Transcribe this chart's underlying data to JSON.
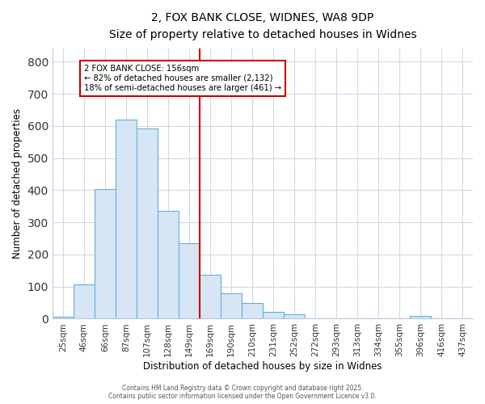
{
  "title_line1": "2, FOX BANK CLOSE, WIDNES, WA8 9DP",
  "title_line2": "Size of property relative to detached houses in Widnes",
  "xlabel": "Distribution of detached houses by size in Widnes",
  "ylabel": "Number of detached properties",
  "bin_labels": [
    "25sqm",
    "46sqm",
    "66sqm",
    "87sqm",
    "107sqm",
    "128sqm",
    "149sqm",
    "169sqm",
    "190sqm",
    "210sqm",
    "231sqm",
    "252sqm",
    "272sqm",
    "293sqm",
    "313sqm",
    "334sqm",
    "355sqm",
    "396sqm",
    "416sqm",
    "437sqm"
  ],
  "bar_heights": [
    7,
    108,
    403,
    619,
    593,
    335,
    236,
    138,
    79,
    50,
    22,
    14,
    0,
    0,
    0,
    0,
    0,
    8,
    0,
    0
  ],
  "bar_color": "#d6e6f5",
  "bar_edge_color": "#6aaed6",
  "property_line_bin": 6,
  "property_line_color": "#cc0000",
  "annotation_text": "2 FOX BANK CLOSE: 156sqm\n← 82% of detached houses are smaller (2,132)\n18% of semi-detached houses are larger (461) →",
  "annotation_box_color": "#cc0000",
  "annotation_bg_color": "#ffffff",
  "ylim": [
    0,
    840
  ],
  "yticks": [
    0,
    100,
    200,
    300,
    400,
    500,
    600,
    700,
    800
  ],
  "background_color": "#ffffff",
  "grid_color": "#d0d8e8",
  "footer_text": "Contains HM Land Registry data © Crown copyright and database right 2025.\nContains public sector information licensed under the Open Government Licence v3.0."
}
